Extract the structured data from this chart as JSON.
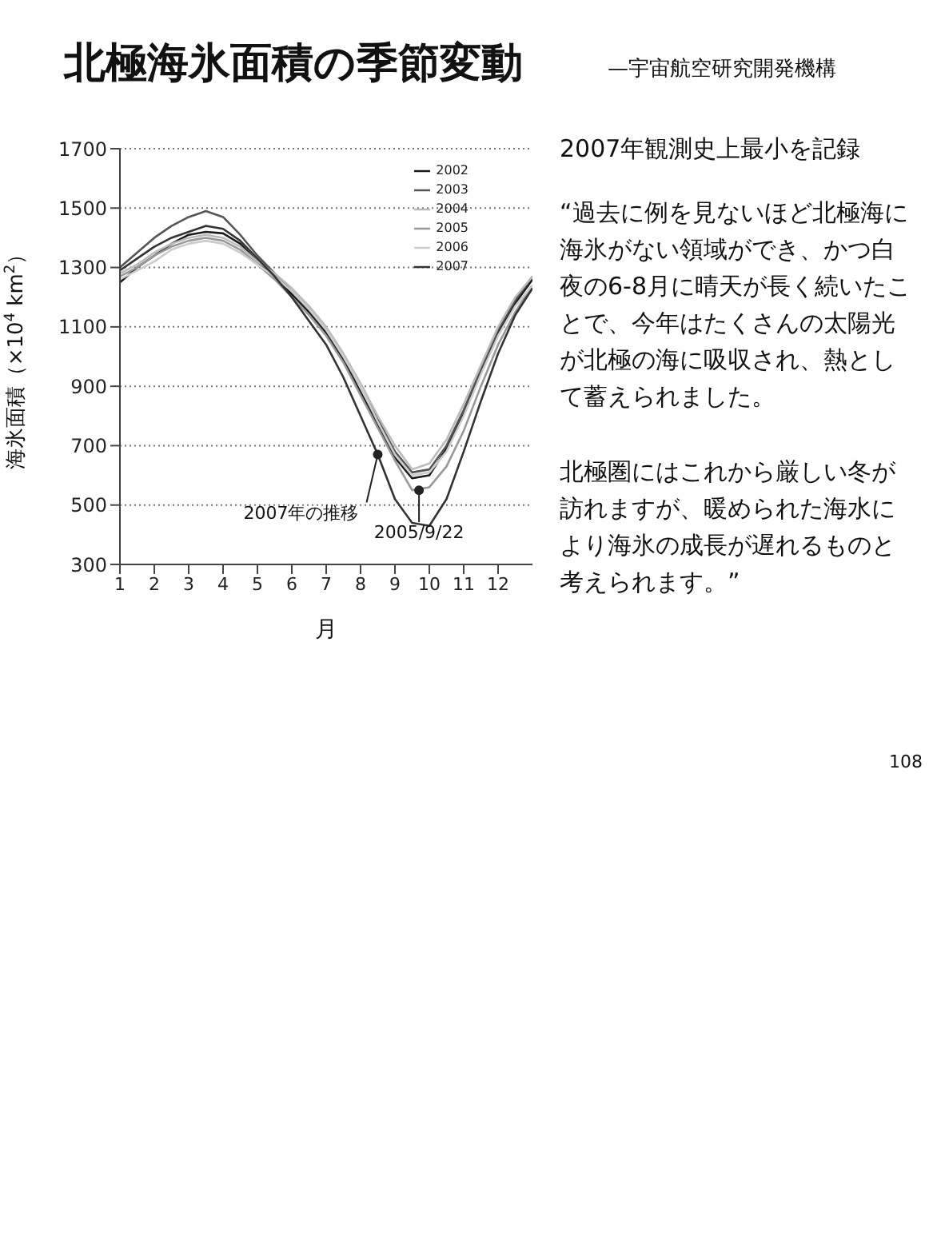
{
  "chart_data": {
    "type": "line",
    "title": "北極海氷面積の季節変動",
    "subtitle": "—宇宙航空研究開発機構",
    "xlabel": "月",
    "ylabel": "海氷面積（×10$^{4}$ km$^{2}$）",
    "x": [
      1,
      1.5,
      2,
      2.5,
      3,
      3.5,
      4,
      4.5,
      5,
      5.5,
      6,
      6.5,
      7,
      7.5,
      8,
      8.5,
      9,
      9.5,
      10,
      10.5,
      11,
      11.5,
      12,
      12.5,
      13
    ],
    "series": [
      {
        "name": "2002",
        "color": "#1a1a1a",
        "values": [
          1250,
          1300,
          1340,
          1380,
          1410,
          1420,
          1415,
          1380,
          1320,
          1270,
          1210,
          1150,
          1080,
          990,
          880,
          770,
          660,
          590,
          600,
          690,
          810,
          950,
          1080,
          1180,
          1260
        ]
      },
      {
        "name": "2003",
        "color": "#555555",
        "values": [
          1300,
          1350,
          1400,
          1440,
          1470,
          1490,
          1470,
          1410,
          1340,
          1280,
          1220,
          1160,
          1090,
          1000,
          900,
          790,
          680,
          610,
          620,
          700,
          820,
          960,
          1090,
          1190,
          1270
        ]
      },
      {
        "name": "2004",
        "color": "#bbbbbb",
        "values": [
          1280,
          1310,
          1350,
          1380,
          1400,
          1410,
          1400,
          1370,
          1320,
          1280,
          1230,
          1170,
          1100,
          1010,
          910,
          800,
          700,
          620,
          640,
          720,
          840,
          970,
          1100,
          1200,
          1270
        ]
      },
      {
        "name": "2005",
        "color": "#999999",
        "values": [
          1270,
          1300,
          1340,
          1370,
          1390,
          1400,
          1390,
          1360,
          1310,
          1260,
          1200,
          1140,
          1070,
          980,
          870,
          760,
          650,
          550,
          560,
          630,
          750,
          900,
          1040,
          1150,
          1240
        ]
      },
      {
        "name": "2006",
        "color": "#cccccc",
        "values": [
          1260,
          1290,
          1320,
          1360,
          1380,
          1390,
          1380,
          1350,
          1310,
          1270,
          1220,
          1160,
          1090,
          1000,
          900,
          780,
          670,
          600,
          610,
          680,
          800,
          940,
          1070,
          1170,
          1240
        ]
      },
      {
        "name": "2007",
        "color": "#333333",
        "values": [
          1290,
          1330,
          1370,
          1400,
          1420,
          1440,
          1430,
          1390,
          1330,
          1270,
          1200,
          1120,
          1040,
          930,
          800,
          670,
          520,
          440,
          430,
          520,
          680,
          850,
          1010,
          1140,
          1230
        ]
      }
    ],
    "xlim": [
      1,
      13
    ],
    "xticks": [
      1,
      2,
      3,
      4,
      5,
      6,
      7,
      8,
      9,
      10,
      11,
      12
    ],
    "ylim": [
      300,
      1700
    ],
    "yticks": [
      300,
      500,
      700,
      900,
      1100,
      1300,
      1500,
      1700
    ],
    "grid": "y",
    "legend": "top right",
    "line_style": "solid",
    "marker": "none",
    "annotations": [
      {
        "text": "2007年の推移",
        "x": 8.5,
        "y": 670
      },
      {
        "text": "2005/9/22",
        "x": 9.7,
        "y": 550
      },
      "2007年観測史上最小を記録",
      "“過去に例を見ないほど北極海に海氷がない領域ができ、かつ白夜の6-8月に晴天が長く続いたことで、今年はたくさんの太陽光が北極の海に吸収され、熱として蓄えられました。",
      "北極圏にはこれから厳しい冬が訪れますが、暖められた海水により海氷の成長が遅れるものと考えられます。”",
      "108"
    ]
  }
}
